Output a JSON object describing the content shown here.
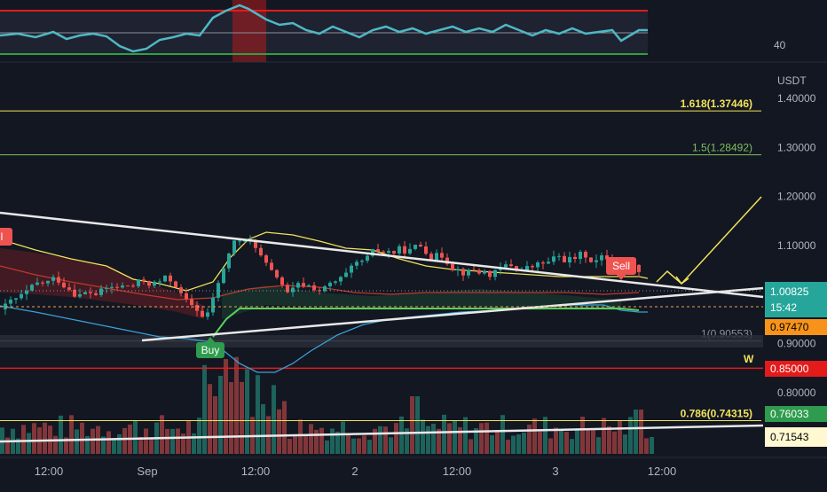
{
  "chart_data": {
    "type": "candlestick",
    "symbol_quote": "USDT",
    "ylim": [
      0.69,
      1.45
    ],
    "y_ticks": [
      "1.40000",
      "1.30000",
      "1.20000",
      "1.10000",
      "0.90000",
      "0.80000"
    ],
    "x_ticks": [
      "12:00",
      "Sep",
      "12:00",
      "2",
      "12:00",
      "3",
      "12:00"
    ],
    "price_labels": {
      "last": {
        "value": "1.00825",
        "countdown": "15:42"
      },
      "orange": "0.97470",
      "red": "0.85000",
      "green": "0.76033",
      "cream": "0.71543"
    },
    "fib_levels": [
      {
        "label": "1.618(1.37446)",
        "price": 1.37446,
        "color": "#f1e35a"
      },
      {
        "label": "1.5(1.28492)",
        "price": 1.28492,
        "color": "#7fbf5f"
      },
      {
        "label": "1(0.90553)",
        "price": 0.90553,
        "color": "#8a8f99"
      },
      {
        "label": "0.786(0.74315)",
        "price": 0.74315,
        "color": "#f1e35a"
      }
    ],
    "support_resistance": {
      "red_line": 0.85,
      "w_label": "W"
    },
    "rsi_panel": {
      "label": "40",
      "upper_band_color": "#e31b1b",
      "lower_band_color": "#2ea043"
    },
    "signals": [
      {
        "label": "Buy",
        "color": "#2e9b4e"
      },
      {
        "label": "Sell",
        "color": "#ef5350"
      },
      {
        "label": "ll",
        "color": "#ef5350"
      }
    ],
    "colors": {
      "up": "#26a69a",
      "down": "#ef5350",
      "background": "#131722"
    }
  }
}
